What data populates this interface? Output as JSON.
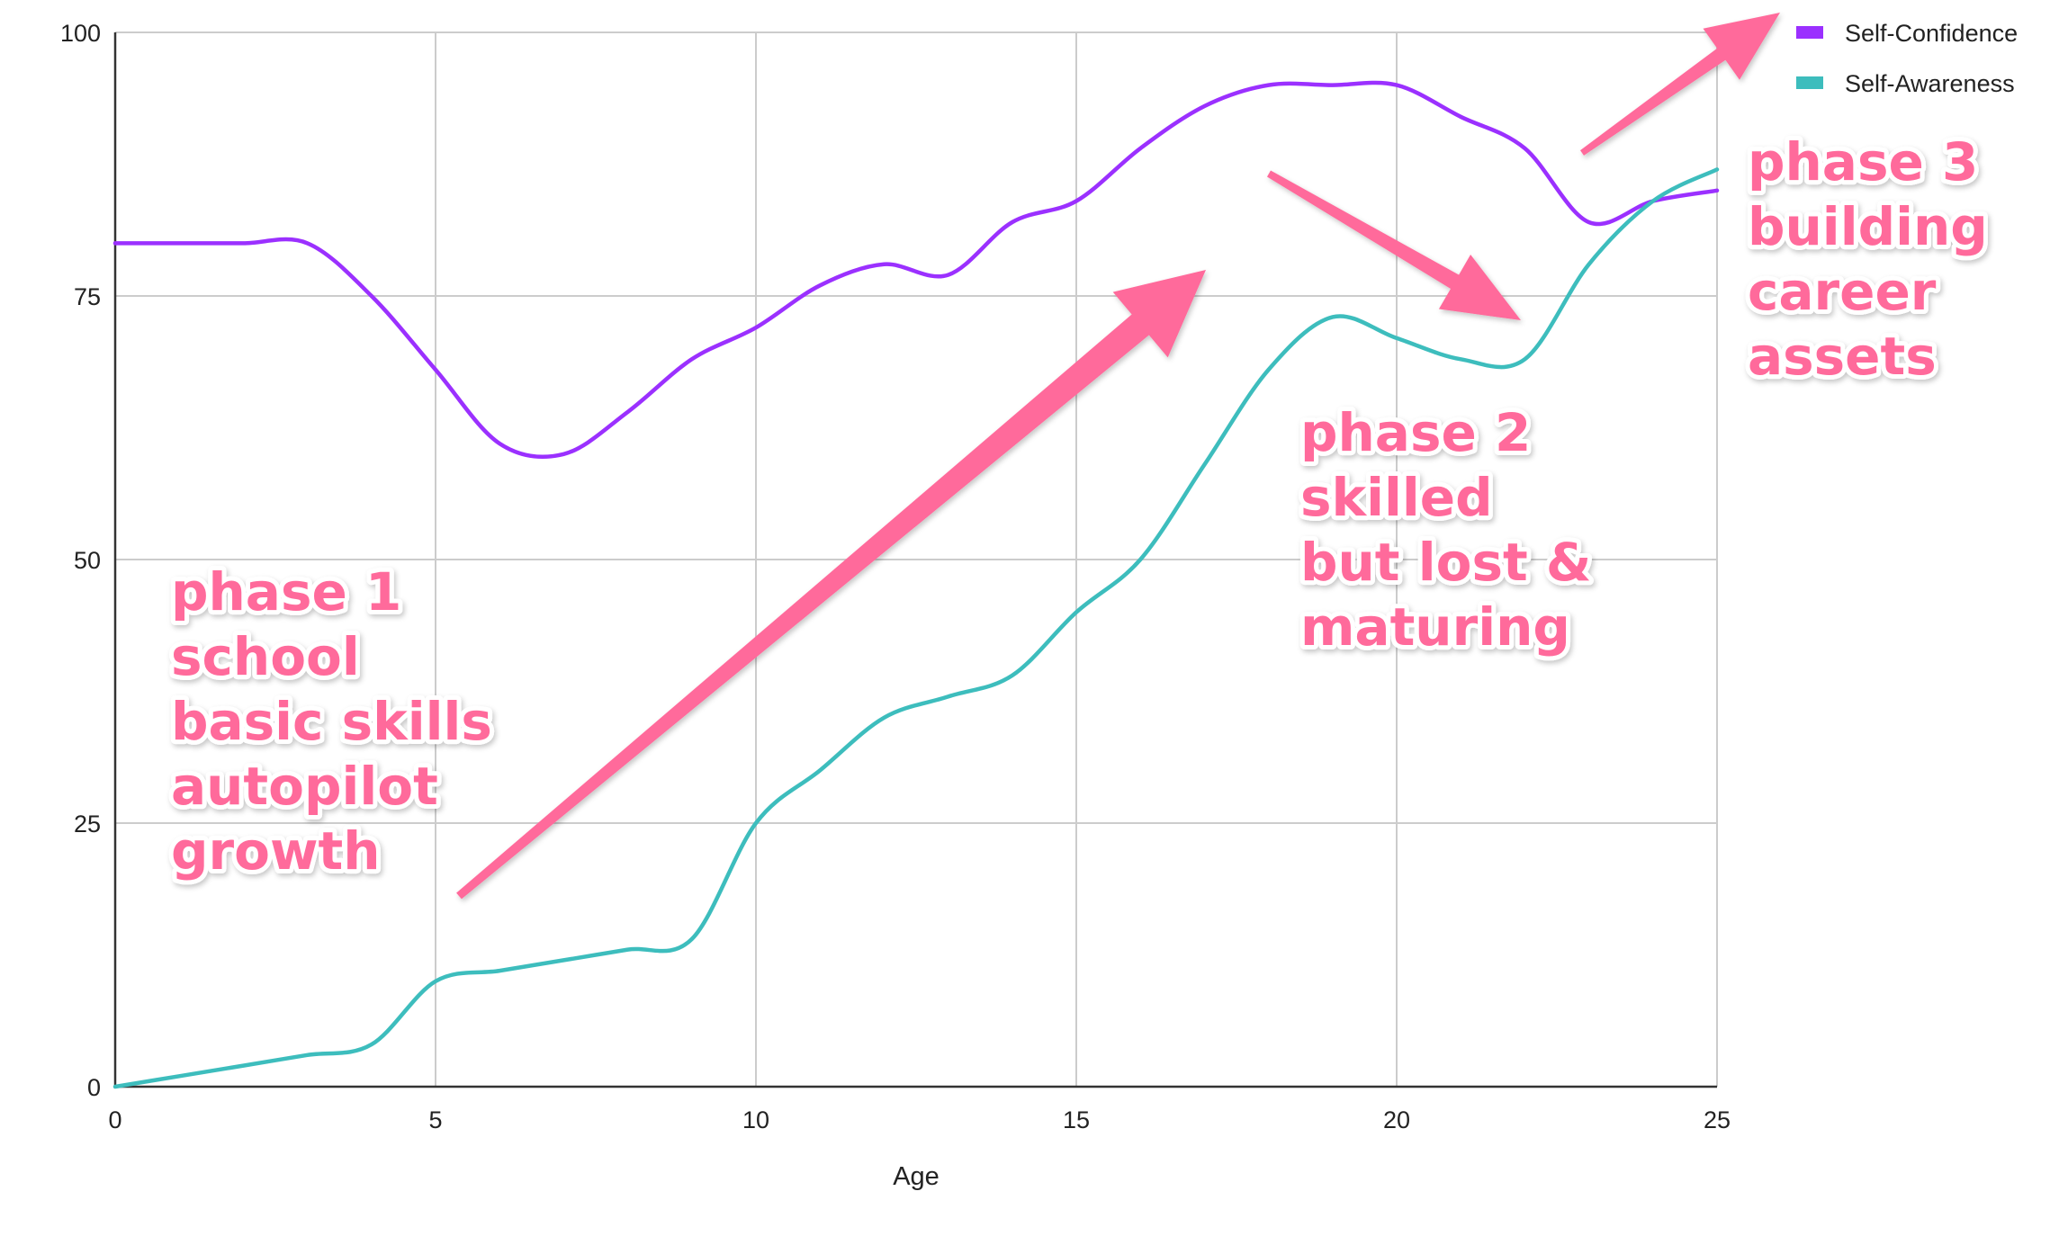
{
  "chart_data": {
    "type": "line",
    "xlabel": "Age",
    "ylabel": "",
    "xlim": [
      0,
      25
    ],
    "ylim": [
      0,
      100
    ],
    "x_ticks": [
      "0",
      "5",
      "10",
      "15",
      "20",
      "25"
    ],
    "y_ticks": [
      "0",
      "25",
      "50",
      "75",
      "100"
    ],
    "grid": true,
    "legend_position": "top-right",
    "series": [
      {
        "name": "Self-Confidence",
        "color": "#9b30ff",
        "x": [
          0,
          1,
          2,
          3,
          4,
          5,
          6,
          7,
          8,
          9,
          10,
          11,
          12,
          13,
          14,
          15,
          16,
          17,
          18,
          19,
          20,
          21,
          22,
          23,
          24,
          25
        ],
        "values": [
          80,
          80,
          80,
          80,
          75,
          68,
          61,
          60,
          64,
          69,
          72,
          76,
          78,
          77,
          82,
          84,
          89,
          93,
          95,
          95,
          95,
          92,
          89,
          82,
          84,
          85
        ]
      },
      {
        "name": "Self-Awareness",
        "color": "#3dbdbd",
        "x": [
          0,
          1,
          2,
          3,
          4,
          5,
          6,
          7,
          8,
          9,
          10,
          11,
          12,
          13,
          14,
          15,
          16,
          17,
          18,
          19,
          20,
          21,
          22,
          23,
          24,
          25
        ],
        "values": [
          0,
          1,
          2,
          3,
          4,
          10,
          11,
          12,
          13,
          14,
          25,
          30,
          35,
          37,
          39,
          45,
          50,
          59,
          68,
          73,
          71,
          69,
          69,
          78,
          84,
          87
        ]
      }
    ],
    "annotations": [
      {
        "lines": [
          "phase 1",
          "school",
          "basic skills",
          "autopilot",
          "growth"
        ]
      },
      {
        "lines": [
          "phase 2",
          "skilled",
          "but lost &",
          "maturing"
        ]
      },
      {
        "lines": [
          "phase 3",
          "building",
          "career",
          "assets"
        ]
      }
    ],
    "annotation_color": "#ff6b9b"
  }
}
